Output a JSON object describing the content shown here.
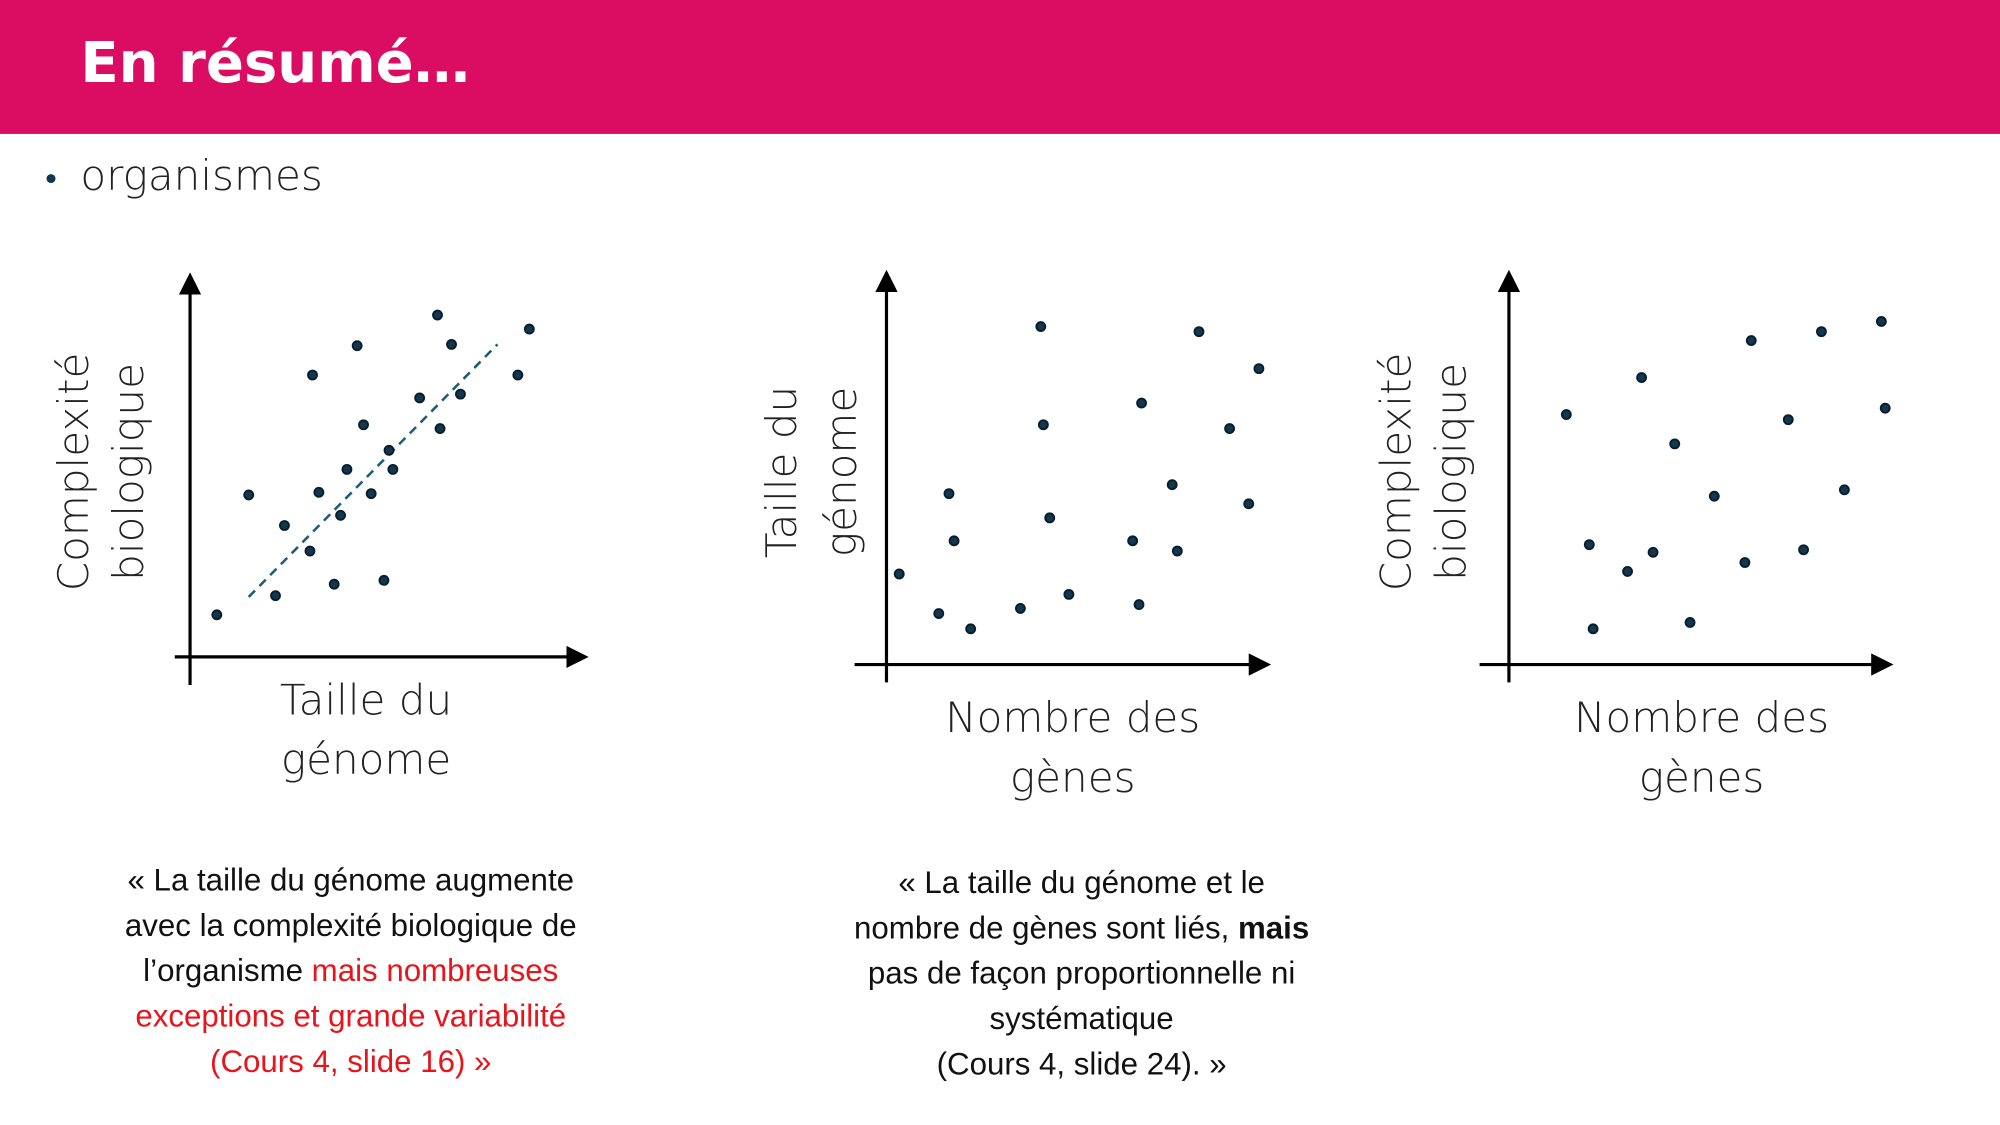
{
  "header": {
    "title": "En résumé…"
  },
  "bullets": [
    "organismes"
  ],
  "plots": [
    {
      "y_label": [
        "Complexité",
        "biologique"
      ],
      "x_label": [
        "Taille du",
        "génome"
      ]
    },
    {
      "y_label": [
        "Taille du",
        "génome"
      ],
      "x_label": [
        "Nombre des",
        "gènes"
      ]
    },
    {
      "y_label": [
        "Complexité",
        "biologique"
      ],
      "x_label": [
        "Nombre des",
        "gènes"
      ]
    }
  ],
  "quotes": [
    {
      "lines": [
        [
          {
            "text": "« La taille du génome augmente"
          }
        ],
        [
          {
            "text": "avec la complexité biologique de"
          }
        ],
        [
          {
            "text": "l’organisme "
          },
          {
            "text": "mais nombreuses",
            "color": "#e8141c"
          }
        ],
        [
          {
            "text": "exceptions et grande variabilité",
            "color": "#e8141c"
          }
        ],
        [
          {
            "text": "(Cours 4, slide 16) »",
            "color": "#e8141c"
          }
        ]
      ]
    },
    {
      "lines": [
        [
          {
            "text": "« La taille du génome et le"
          }
        ],
        [
          {
            "text": "nombre de gènes sont liés, "
          },
          {
            "text": "mais",
            "bold": true
          }
        ],
        [
          {
            "text": "pas de façon proportionnelle ni"
          }
        ],
        [
          {
            "text": "systématique"
          }
        ],
        [
          {
            "text": "(Cours 4, slide 24). »"
          }
        ]
      ]
    }
  ]
}
